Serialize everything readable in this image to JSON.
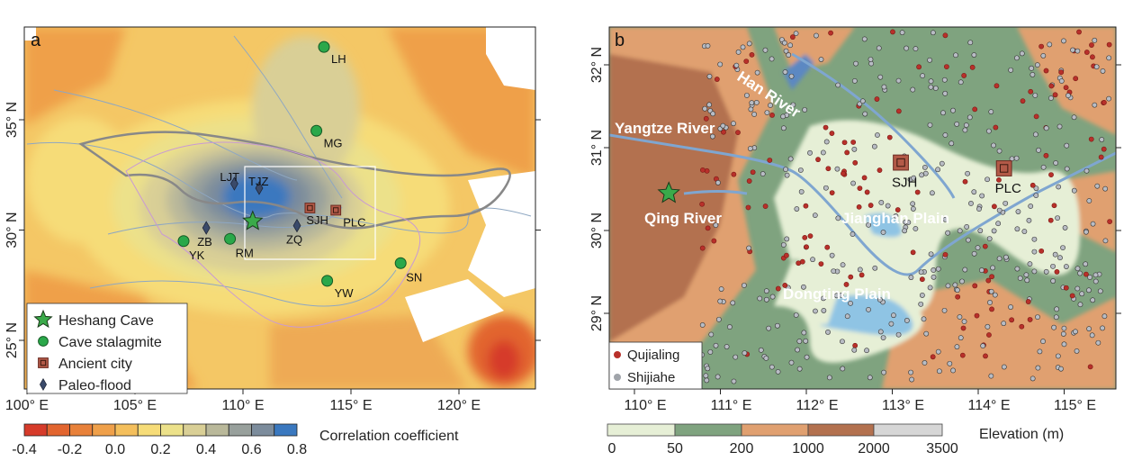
{
  "panel_a": {
    "letter": "a",
    "lon_ticks": [
      "100° E",
      "105° E",
      "110° E",
      "115° E",
      "120° E"
    ],
    "lat_ticks": [
      "35° N",
      "30° N",
      "25° N"
    ],
    "sites": [
      {
        "label": "LH",
        "type": "stalagmite",
        "lon": 113.75,
        "lat": 38.3
      },
      {
        "label": "MG",
        "type": "stalagmite",
        "lon": 113.4,
        "lat": 34.5
      },
      {
        "label": "YK",
        "type": "stalagmite",
        "lon": 107.25,
        "lat": 29.5
      },
      {
        "label": "RM",
        "type": "stalagmite",
        "lon": 109.4,
        "lat": 29.6
      },
      {
        "label": "YW",
        "type": "stalagmite",
        "lon": 113.9,
        "lat": 27.7
      },
      {
        "label": "SN",
        "type": "stalagmite",
        "lon": 117.3,
        "lat": 28.5
      },
      {
        "label": "",
        "type": "cave",
        "lon": 110.45,
        "lat": 30.4
      },
      {
        "label": "SJH",
        "type": "city",
        "lon": 113.1,
        "lat": 31.0
      },
      {
        "label": "PLC",
        "type": "city",
        "lon": 114.3,
        "lat": 30.9
      },
      {
        "label": "LJT",
        "type": "flood",
        "lon": 109.6,
        "lat": 32.1
      },
      {
        "label": "TJZ",
        "type": "flood",
        "lon": 110.75,
        "lat": 31.9
      },
      {
        "label": "ZB",
        "type": "flood",
        "lon": 108.3,
        "lat": 30.1
      },
      {
        "label": "ZQ",
        "type": "flood",
        "lon": 112.5,
        "lat": 30.2
      }
    ],
    "legend": [
      {
        "symbol": "star",
        "label": "Heshang Cave"
      },
      {
        "symbol": "circle",
        "label": "Cave stalagmite"
      },
      {
        "symbol": "square",
        "label": "Ancient city"
      },
      {
        "symbol": "diamond",
        "label": "Paleo-flood"
      }
    ],
    "colorbar": {
      "title": "Correlation coefficient",
      "tick_labels": [
        "-0.4",
        "-0.2",
        "0.0",
        "0.2",
        "0.4",
        "0.6",
        "0.8"
      ],
      "colors": [
        "#d63b2a",
        "#e2652f",
        "#e8813a",
        "#efa04a",
        "#f4bf5c",
        "#f6dc78",
        "#ece18a",
        "#d9cf96",
        "#b9b89a",
        "#98a09c",
        "#7c8c9c",
        "#3a78bf"
      ]
    }
  },
  "panel_b": {
    "letter": "b",
    "lon_ticks": [
      "110° E",
      "111° E",
      "112° E",
      "113° E",
      "114° E",
      "115° E"
    ],
    "lat_ticks": [
      "32° N",
      "31° N",
      "30° N",
      "29° N"
    ],
    "place_labels": [
      "Han River",
      "Yangtze River",
      "Qing River",
      "Jianghan Plain",
      "Dongting Plain"
    ],
    "sites": [
      {
        "label": "SJH",
        "type": "city",
        "lon": 113.1,
        "lat": 30.82
      },
      {
        "label": "PLC",
        "type": "city",
        "lon": 114.3,
        "lat": 30.75
      },
      {
        "label": "",
        "type": "cave",
        "lon": 110.4,
        "lat": 30.45
      }
    ],
    "legend": [
      {
        "color": "#b8302a",
        "label": "Qujialing"
      },
      {
        "color": "#a0a4aa",
        "label": "Shijiahe"
      }
    ],
    "colorbar": {
      "title": "Elevation (m)",
      "tick_labels": [
        "0",
        "50",
        "200",
        "1000",
        "2000",
        "3500"
      ],
      "colors": [
        "#e6efd6",
        "#7fa37f",
        "#e0a070",
        "#b3714f",
        "#d6d6d6"
      ]
    }
  }
}
